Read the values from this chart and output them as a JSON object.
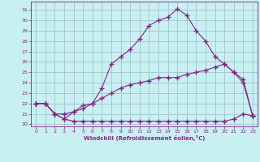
{
  "xlabel": "Windchill (Refroidissement éolien,°C)",
  "bg_color": "#c8f0f0",
  "line_color": "#882288",
  "grid_color": "#99bbcc",
  "xlim": [
    -0.5,
    23.5
  ],
  "ylim": [
    19.8,
    31.8
  ],
  "xticks": [
    0,
    1,
    2,
    3,
    4,
    5,
    6,
    7,
    8,
    9,
    10,
    11,
    12,
    13,
    14,
    15,
    16,
    17,
    18,
    19,
    20,
    21,
    22,
    23
  ],
  "yticks": [
    20,
    21,
    22,
    23,
    24,
    25,
    26,
    27,
    28,
    29,
    30,
    31
  ],
  "curve1_x": [
    0,
    1,
    2,
    3,
    4,
    5,
    6,
    7,
    8,
    9,
    10,
    11,
    12,
    13,
    14,
    15,
    16,
    17,
    18,
    19,
    20,
    21,
    22,
    23
  ],
  "curve1_y": [
    22.0,
    22.0,
    21.0,
    20.5,
    21.2,
    21.8,
    22.0,
    23.5,
    25.8,
    26.5,
    27.2,
    28.2,
    29.5,
    30.0,
    30.3,
    31.1,
    30.5,
    29.0,
    28.0,
    26.5,
    25.8,
    25.0,
    24.3,
    20.8
  ],
  "curve2_x": [
    0,
    1,
    2,
    3,
    4,
    5,
    6,
    7,
    8,
    9,
    10,
    11,
    12,
    13,
    14,
    15,
    16,
    17,
    18,
    19,
    20,
    21,
    22,
    23
  ],
  "curve2_y": [
    22.0,
    22.0,
    21.0,
    21.0,
    21.2,
    21.5,
    22.0,
    22.5,
    23.0,
    23.5,
    23.8,
    24.0,
    24.2,
    24.5,
    24.5,
    24.5,
    24.8,
    25.0,
    25.2,
    25.5,
    25.8,
    25.0,
    24.0,
    20.8
  ],
  "curve3_x": [
    0,
    1,
    2,
    3,
    4,
    5,
    6,
    7,
    8,
    9,
    10,
    11,
    12,
    13,
    14,
    15,
    16,
    17,
    18,
    19,
    20,
    21,
    22,
    23
  ],
  "curve3_y": [
    22.0,
    22.0,
    21.0,
    20.5,
    20.3,
    20.3,
    20.3,
    20.3,
    20.3,
    20.3,
    20.3,
    20.3,
    20.3,
    20.3,
    20.3,
    20.3,
    20.3,
    20.3,
    20.3,
    20.3,
    20.3,
    20.5,
    21.0,
    20.8
  ]
}
